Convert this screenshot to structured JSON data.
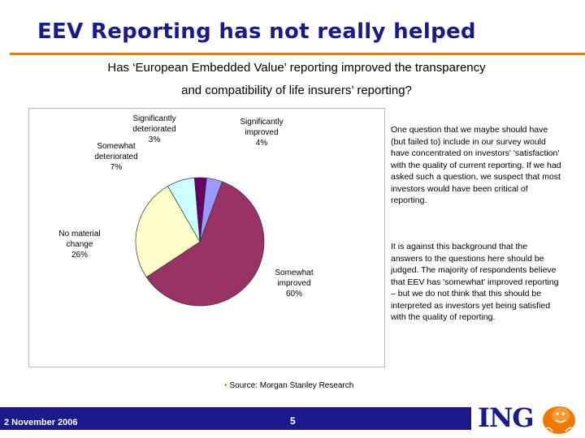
{
  "slide": {
    "title": "EEV Reporting has not really helped",
    "question_line1": "Has ‘European Embedded Value’ reporting improved the transparency",
    "question_line2": "and compatibility of life insurers’ reporting?",
    "paragraph1": "One question that we maybe should have (but failed to) include in our survey would have concentrated on investors' 'satisfaction' with the quality of current reporting. If we had asked such a question, we suspect that most investors would have been critical of reporting.",
    "paragraph2": "It is against this background that the answers to the questions here should be judged. The majority of respondents believe that EEV has 'somewhat' improved reporting – but we do not think that this should be interpreted  as investors yet being satisfied with the quality of reporting.",
    "source_bullet": "•",
    "source": "Source: Morgan Stanley Research"
  },
  "footer": {
    "date": "2 November 2006",
    "page": "5",
    "logo_text": "ING"
  },
  "colors": {
    "title": "#1a1a8c",
    "accent": "#f07800",
    "footer_bar": "#1a1a8c"
  },
  "chart_data": {
    "type": "pie",
    "title": "",
    "slices": [
      {
        "name": "Significantly improved",
        "value": 4,
        "label_lines": [
          "Significantly",
          "improved",
          "4%"
        ],
        "color": "#9999ff"
      },
      {
        "name": "Somewhat improved",
        "value": 60,
        "label_lines": [
          "Somewhat",
          "improved",
          "60%"
        ],
        "color": "#993366"
      },
      {
        "name": "No material change",
        "value": 26,
        "label_lines": [
          "No material",
          "change",
          "26%"
        ],
        "color": "#ffffcc"
      },
      {
        "name": "Somewhat deteriorated",
        "value": 7,
        "label_lines": [
          "Somewhat",
          "deteriorated",
          "7%"
        ],
        "color": "#ccffff"
      },
      {
        "name": "Significantly deteriorated",
        "value": 3,
        "label_lines": [
          "Significantly",
          "deteriorated",
          "3%"
        ],
        "color": "#660066"
      }
    ]
  }
}
